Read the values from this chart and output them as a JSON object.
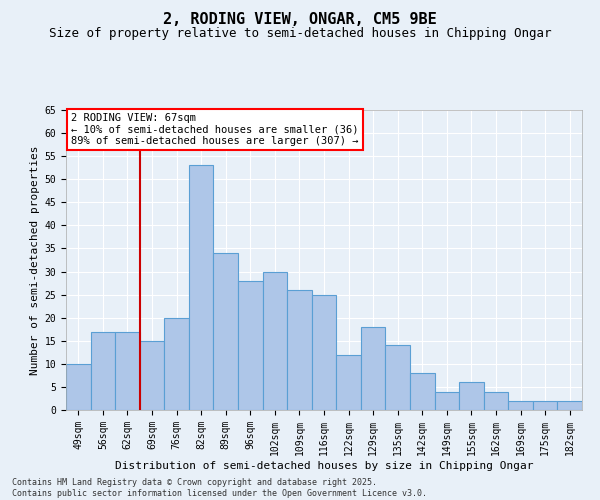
{
  "title": "2, RODING VIEW, ONGAR, CM5 9BE",
  "subtitle": "Size of property relative to semi-detached houses in Chipping Ongar",
  "xlabel": "Distribution of semi-detached houses by size in Chipping Ongar",
  "ylabel": "Number of semi-detached properties",
  "categories": [
    "49sqm",
    "56sqm",
    "62sqm",
    "69sqm",
    "76sqm",
    "82sqm",
    "89sqm",
    "96sqm",
    "102sqm",
    "109sqm",
    "116sqm",
    "122sqm",
    "129sqm",
    "135sqm",
    "142sqm",
    "149sqm",
    "155sqm",
    "162sqm",
    "169sqm",
    "175sqm",
    "182sqm"
  ],
  "values": [
    10,
    17,
    17,
    15,
    20,
    53,
    34,
    28,
    30,
    26,
    25,
    12,
    18,
    14,
    8,
    4,
    6,
    4,
    2,
    2,
    2
  ],
  "bar_color": "#aec6e8",
  "bar_edge_color": "#5a9fd4",
  "background_color": "#e8f0f8",
  "grid_color": "#ffffff",
  "vline_x_index": 2,
  "vline_color": "#cc0000",
  "annotation_title": "2 RODING VIEW: 67sqm",
  "annotation_line1": "← 10% of semi-detached houses are smaller (36)",
  "annotation_line2": "89% of semi-detached houses are larger (307) →",
  "ylim": [
    0,
    65
  ],
  "yticks": [
    0,
    5,
    10,
    15,
    20,
    25,
    30,
    35,
    40,
    45,
    50,
    55,
    60,
    65
  ],
  "footer_line1": "Contains HM Land Registry data © Crown copyright and database right 2025.",
  "footer_line2": "Contains public sector information licensed under the Open Government Licence v3.0.",
  "title_fontsize": 11,
  "subtitle_fontsize": 9,
  "axis_label_fontsize": 8,
  "tick_fontsize": 7,
  "annotation_fontsize": 7.5,
  "footer_fontsize": 6
}
